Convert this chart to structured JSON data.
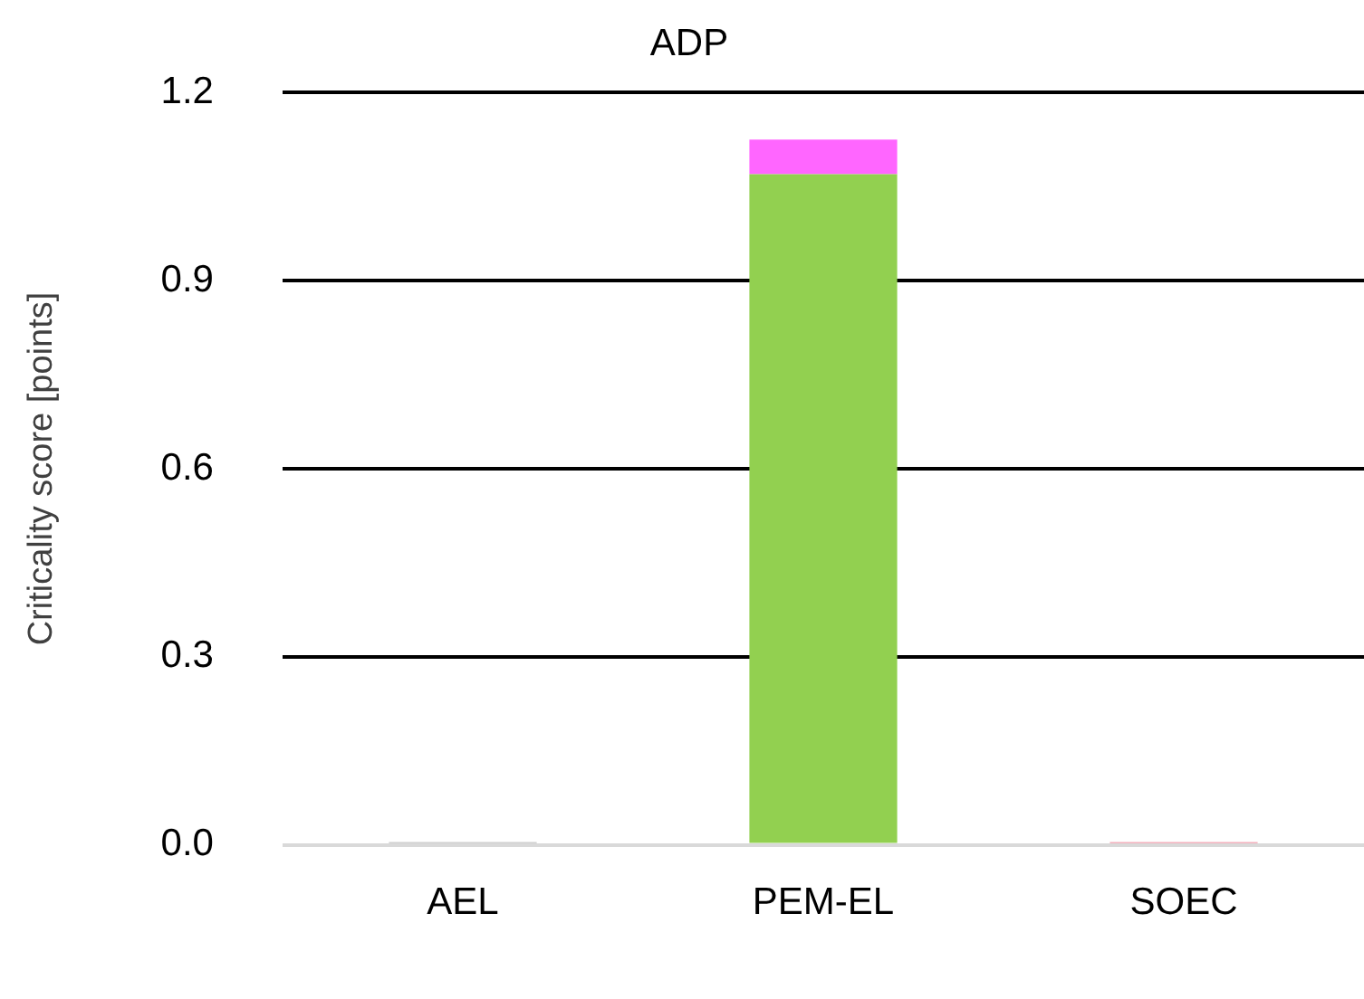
{
  "chart_data": {
    "type": "bar",
    "title": "ADP",
    "ylabel": "Criticality score [points]",
    "categories": [
      "AEL",
      "PEM-EL",
      "SOEC"
    ],
    "stacked": true,
    "series": [
      {
        "color": "#92d050",
        "values": [
          null,
          1.07,
          null
        ]
      },
      {
        "color": "#ff66ff",
        "values": [
          null,
          0.055,
          null
        ]
      },
      {
        "color": "#a0a0a0",
        "values": [
          0.004,
          null,
          null
        ]
      },
      {
        "color": "#e8607a",
        "values": [
          null,
          null,
          0.004
        ]
      }
    ],
    "ylim": [
      0,
      1.2
    ],
    "yticks": [
      {
        "value": 0,
        "label": "0.0"
      },
      {
        "value": 0.3,
        "label": "0.3"
      },
      {
        "value": 0.6,
        "label": "0.6"
      },
      {
        "value": 0.9,
        "label": "0.9"
      },
      {
        "value": 1.2,
        "label": "1.2"
      }
    ],
    "grid": "y",
    "legend": false
  }
}
